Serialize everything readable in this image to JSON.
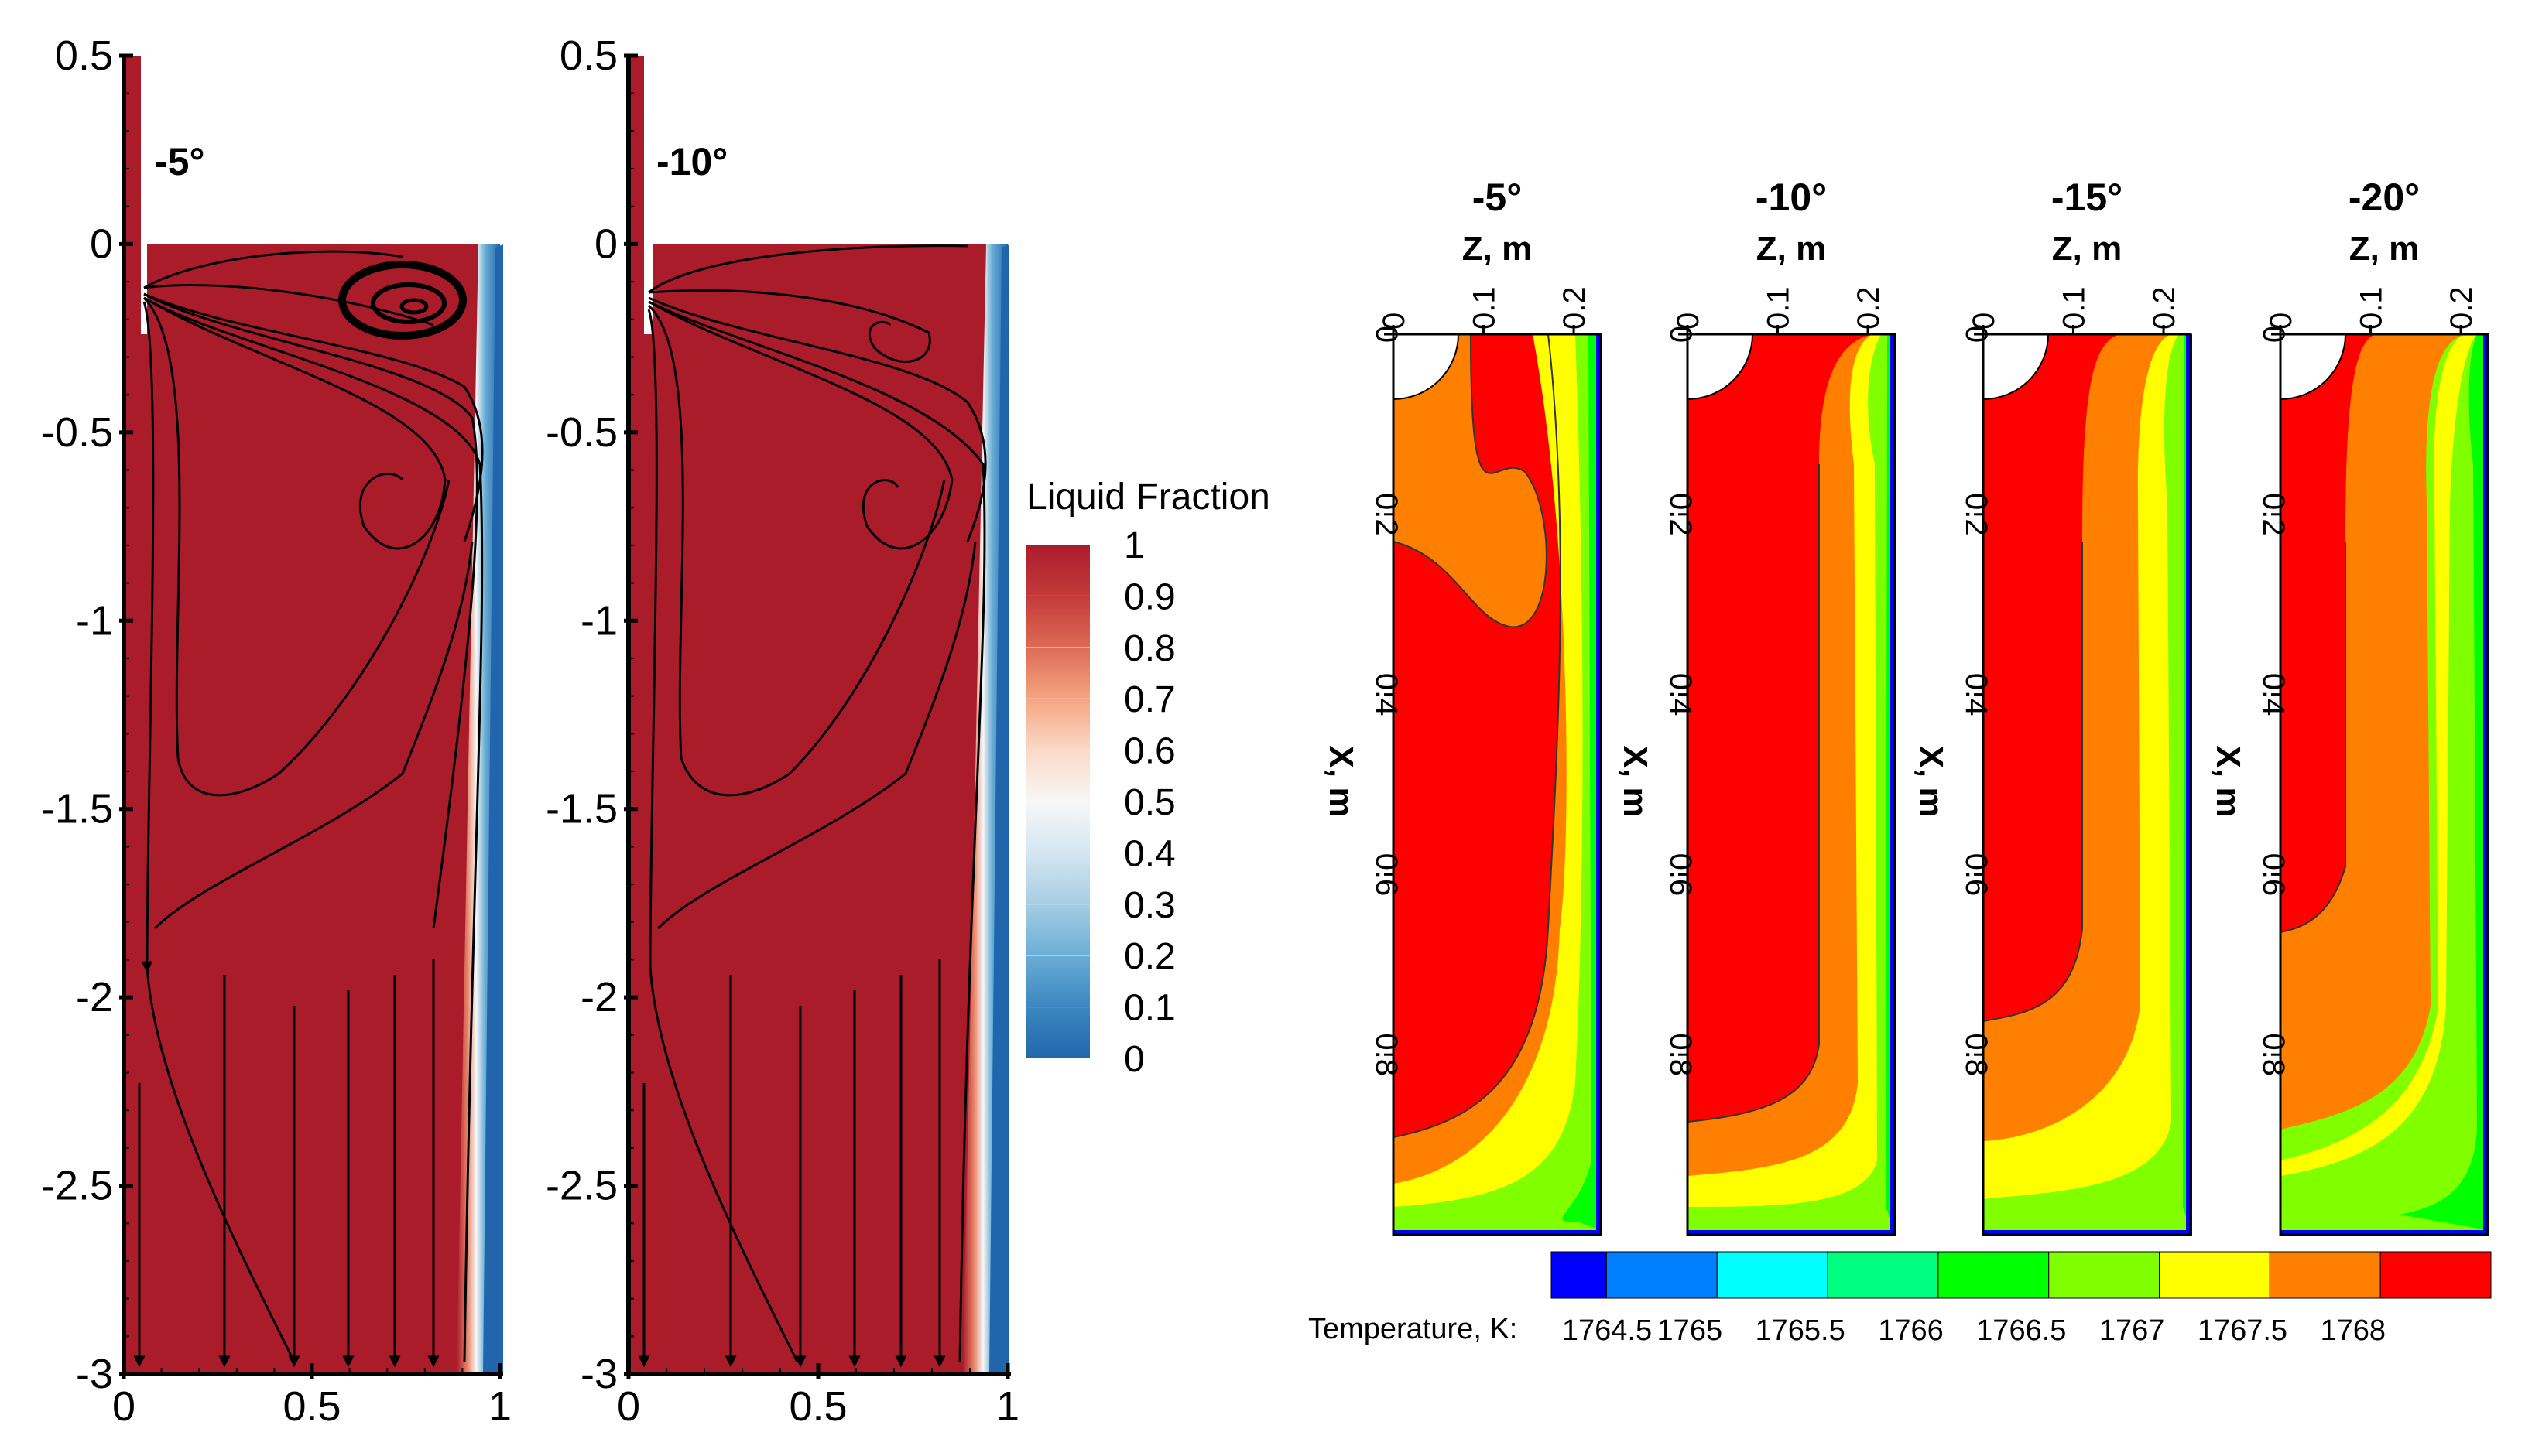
{
  "chart_data": [
    {
      "type": "heatmap",
      "title": "-5°",
      "field": "Liquid Fraction",
      "streamlines": true,
      "xlim": [
        0,
        1
      ],
      "ylim": [
        -3,
        0.5
      ],
      "xticks": [
        "0",
        "0.5",
        "1"
      ],
      "yticks": [
        "0.5",
        "0",
        "-0.5",
        "-1",
        "-1.5",
        "-2",
        "-2.5",
        "-3"
      ]
    },
    {
      "type": "heatmap",
      "title": "-10°",
      "field": "Liquid Fraction",
      "streamlines": true,
      "xlim": [
        0,
        1
      ],
      "ylim": [
        -3,
        0.5
      ],
      "xticks": [
        "0",
        "0.5",
        "1"
      ],
      "yticks": [
        "0.5",
        "0",
        "-0.5",
        "-1",
        "-1.5",
        "-2",
        "-2.5",
        "-3"
      ]
    },
    {
      "type": "heatmap",
      "title": "-5°",
      "field": "Temperature, K",
      "xlabel": "Z, m",
      "ylabel": "X, m",
      "xticks": [
        "0",
        "0.1",
        "0.2"
      ],
      "yticks": [
        "0",
        "0.2",
        "0.4",
        "0.6",
        "0.8"
      ],
      "zlim": [
        1764.5,
        1768
      ]
    },
    {
      "type": "heatmap",
      "title": "-10°",
      "field": "Temperature, K",
      "xlabel": "Z, m",
      "ylabel": "X, m",
      "xticks": [
        "0",
        "0.1",
        "0.2"
      ],
      "yticks": [
        "0",
        "0.2",
        "0.4",
        "0.6",
        "0.8"
      ],
      "zlim": [
        1764.5,
        1768
      ]
    },
    {
      "type": "heatmap",
      "title": "-15°",
      "field": "Temperature, K",
      "xlabel": "Z, m",
      "ylabel": "X, m",
      "xticks": [
        "0",
        "0.1",
        "0.2"
      ],
      "yticks": [
        "0",
        "0.2",
        "0.4",
        "0.6",
        "0.8"
      ],
      "zlim": [
        1764.5,
        1768
      ]
    },
    {
      "type": "heatmap",
      "title": "-20°",
      "field": "Temperature, K",
      "xlabel": "Z, m",
      "ylabel": "X, m",
      "xticks": [
        "0",
        "0.1",
        "0.2"
      ],
      "yticks": [
        "0",
        "0.2",
        "0.4",
        "0.6",
        "0.8"
      ],
      "zlim": [
        1764.5,
        1768
      ]
    }
  ],
  "liquid_colorbar": {
    "title": "Liquid Fraction",
    "ticks": [
      "1",
      "0.9",
      "0.8",
      "0.7",
      "0.6",
      "0.5",
      "0.4",
      "0.3",
      "0.2",
      "0.1",
      "0"
    ]
  },
  "temperature_colorbar": {
    "title": "Temperature, K:",
    "ticks": [
      "1764.5",
      "1765",
      "1765.5",
      "1766",
      "1766.5",
      "1767",
      "1767.5",
      "1768"
    ]
  },
  "colors": {
    "liquid": "#ab1c2b",
    "solid": "#2166ac",
    "temp_1764_5": "#0000ff",
    "temp_1764_75": "#0080ff",
    "temp_1765_25": "#00ffff",
    "temp_1765_75": "#00ff80",
    "temp_1766_25": "#00ff00",
    "temp_1766_75": "#80ff00",
    "temp_1767_25": "#ffff00",
    "temp_1767_75": "#ff8000",
    "temp_1768": "#ff0000"
  }
}
